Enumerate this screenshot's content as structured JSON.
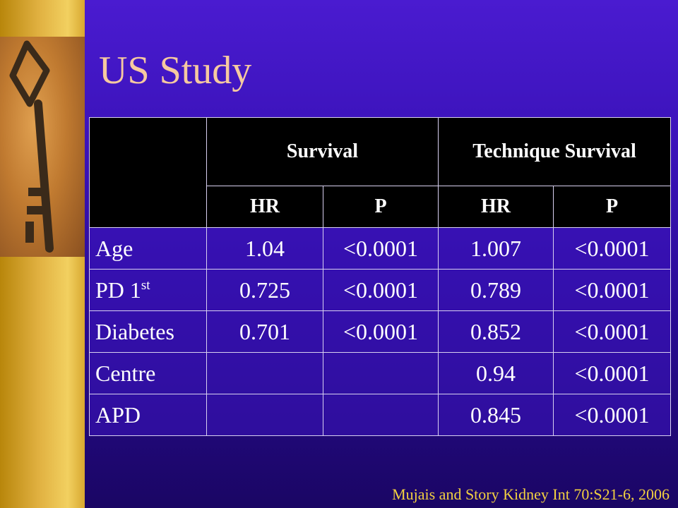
{
  "slide": {
    "title": "US Study",
    "citation": "Mujais and Story Kidney Int 70:S21-6, 2006"
  },
  "table": {
    "groups": [
      "Survival",
      "Technique Survival"
    ],
    "subheaders": [
      "HR",
      "P",
      "HR",
      "P"
    ],
    "rows": [
      {
        "label": "Age",
        "sup": "",
        "cells": [
          "1.04",
          "<0.0001",
          "1.007",
          "<0.0001"
        ]
      },
      {
        "label": "PD 1",
        "sup": "st",
        "cells": [
          "0.725",
          "<0.0001",
          "0.789",
          "<0.0001"
        ]
      },
      {
        "label": "Diabetes",
        "sup": "",
        "cells": [
          "0.701",
          "<0.0001",
          "0.852",
          "<0.0001"
        ]
      },
      {
        "label": "Centre",
        "sup": "",
        "cells": [
          "",
          "",
          "0.94",
          "<0.0001"
        ]
      },
      {
        "label": "APD",
        "sup": "",
        "cells": [
          "",
          "",
          "0.845",
          "<0.0001"
        ]
      }
    ]
  },
  "colors": {
    "background": "#3a12b8",
    "title": "#f6c9a0",
    "citation": "#f2d040",
    "header_bg": "#000000",
    "strip": "#e0b040"
  },
  "icons": {
    "photo": "antique-key"
  }
}
